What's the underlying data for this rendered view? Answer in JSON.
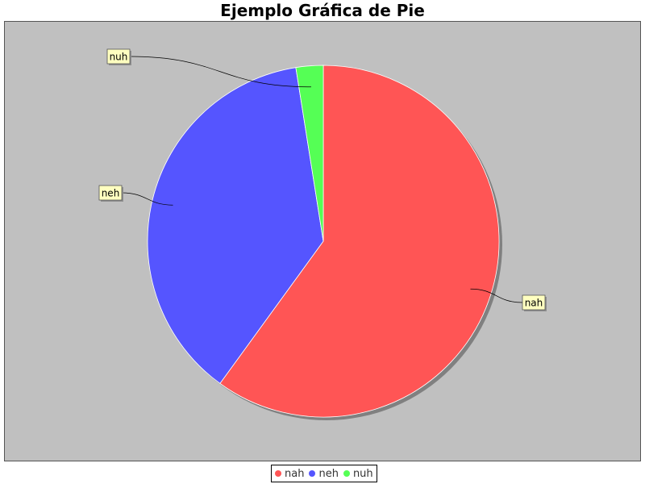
{
  "chart_data": {
    "type": "pie",
    "title": "Ejemplo Gráfica de Pie",
    "categories": [
      "nah",
      "neh",
      "nuh"
    ],
    "values": [
      60,
      37.5,
      2.5
    ],
    "colors": [
      "#FF5555",
      "#5555FF",
      "#55FF55"
    ],
    "plot_background": "#C0C0C0",
    "label_background": "#FFFFC0",
    "legend_position": "bottom"
  },
  "legend": {
    "items": [
      {
        "label": "nah",
        "color": "#FF5555"
      },
      {
        "label": "neh",
        "color": "#5555FF"
      },
      {
        "label": "nuh",
        "color": "#55FF55"
      }
    ]
  }
}
